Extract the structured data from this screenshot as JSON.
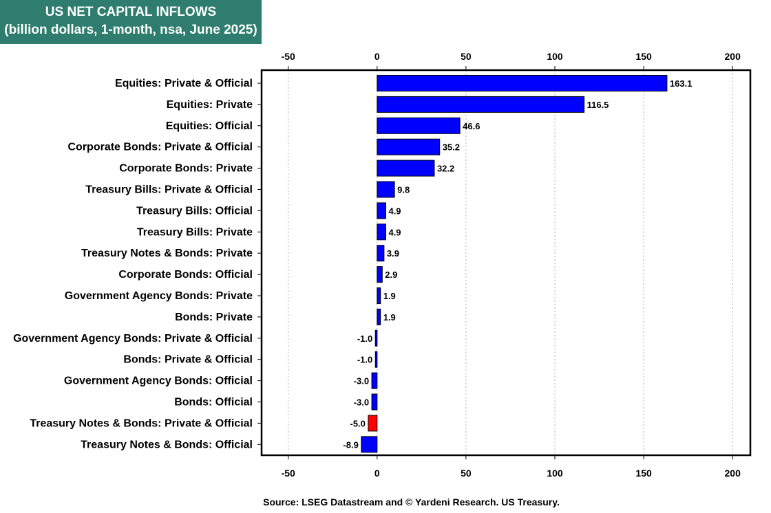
{
  "title_line1": "US NET CAPITAL INFLOWS",
  "title_line2": "(billion dollars, 1-month, nsa, June 2025)",
  "source": "Source: LSEG Datastream and © Yardeni Research. US Treasury.",
  "colors": {
    "positive": "#0000ff",
    "negative": "#ff0000",
    "title_bg": "#2e7d6e",
    "grid": "#b0b0b0"
  },
  "chart_data": {
    "type": "bar",
    "orientation": "horizontal",
    "title": "US NET CAPITAL INFLOWS (billion dollars, 1-month, nsa, June 2025)",
    "xlim": [
      -65,
      210
    ],
    "ticks": [
      -50,
      0,
      50,
      100,
      150,
      200
    ],
    "tick_labels": [
      "-50",
      "0",
      "50",
      "100",
      "150",
      "200"
    ],
    "grid": true,
    "categories": [
      "Equities: Private & Official",
      "Equities: Private",
      "Equities: Official",
      "Corporate Bonds: Private & Official",
      "Corporate Bonds: Private",
      "Treasury Bills: Private & Official",
      "Treasury Bills: Official",
      "Treasury Bills: Private",
      "Treasury Notes & Bonds: Private",
      "Corporate Bonds: Official",
      "Government Agency Bonds: Private",
      "Bonds: Private",
      "Government Agency Bonds: Private & Official",
      "Bonds: Private & Official",
      "Government Agency Bonds: Official",
      "Bonds: Official",
      "Treasury Notes & Bonds: Private & Official",
      "Treasury Notes & Bonds: Official"
    ],
    "values": [
      163.1,
      116.5,
      46.6,
      35.2,
      32.2,
      9.8,
      4.9,
      4.9,
      3.9,
      2.9,
      1.9,
      1.9,
      -1.0,
      -1.0,
      -3.0,
      -3.0,
      -5.0,
      -8.9
    ],
    "value_labels": [
      "163.1",
      "116.5",
      "46.6",
      "35.2",
      "32.2",
      "9.8",
      "4.9",
      "4.9",
      "3.9",
      "2.9",
      "1.9",
      "1.9",
      "-1.0",
      "-1.0",
      "-3.0",
      "-3.0",
      "-5.0",
      "-8.9"
    ],
    "bar_colors": [
      "#0000ff",
      "#0000ff",
      "#0000ff",
      "#0000ff",
      "#0000ff",
      "#0000ff",
      "#0000ff",
      "#0000ff",
      "#0000ff",
      "#0000ff",
      "#0000ff",
      "#0000ff",
      "#0000ff",
      "#0000ff",
      "#0000ff",
      "#0000ff",
      "#ff0000",
      "#0000ff"
    ]
  }
}
